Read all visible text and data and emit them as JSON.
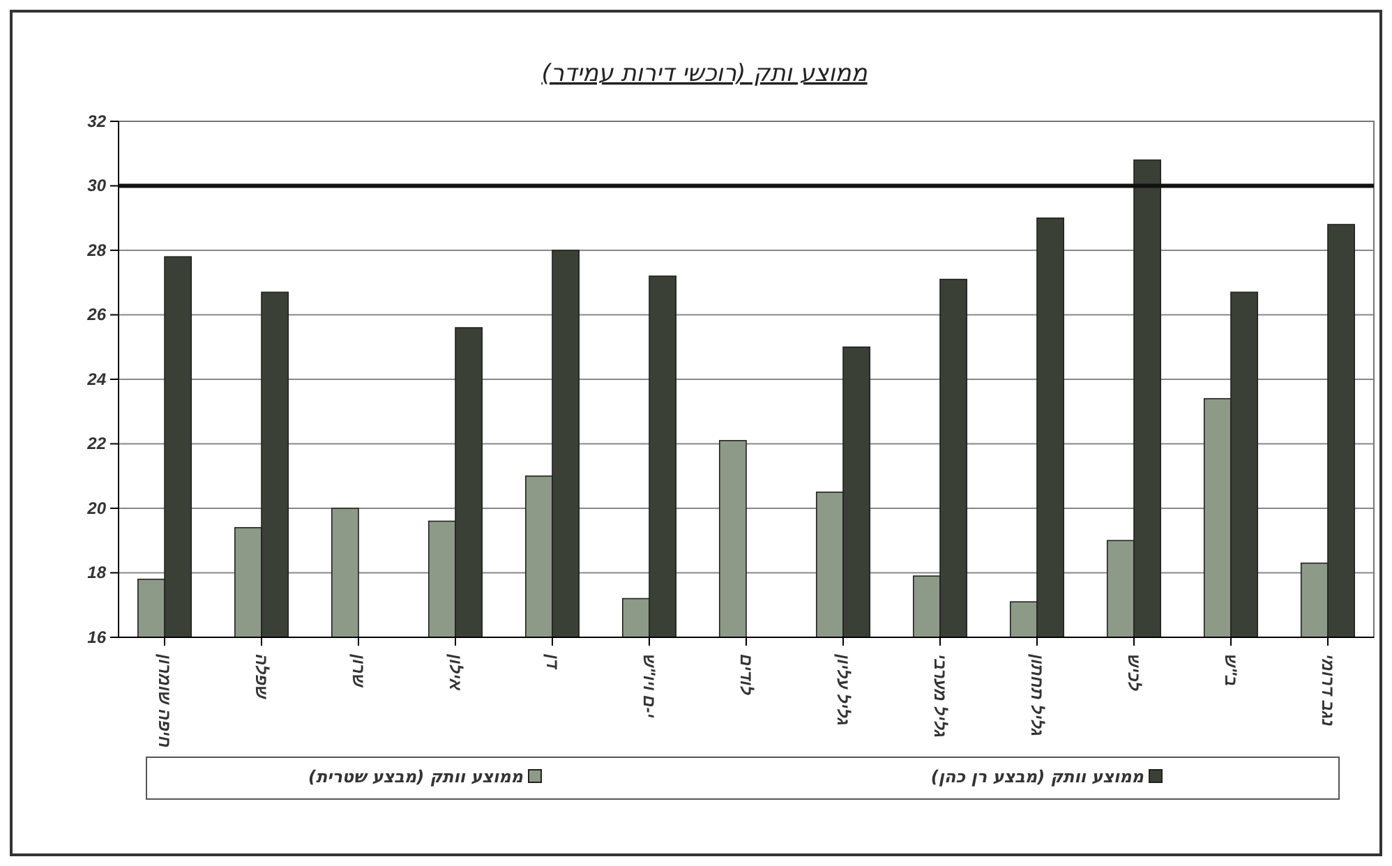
{
  "chart_data": {
    "type": "bar",
    "title": "ממוצע ותק  (רוכשי דירות עמידר)",
    "categories": [
      "חיפה שומרון",
      "שפלה",
      "שרון",
      "אילון",
      "דן",
      "י-ם ויו\"ש",
      "לודים",
      "גליל עליון",
      "גליל מערבי",
      "גליל תחתון",
      "לכיש",
      "ב\"ש",
      "נגב דרומי"
    ],
    "series": [
      {
        "name": "ממוצע וותק  (מבצע שטרית)",
        "color": "#8e9a88",
        "values": [
          17.8,
          19.4,
          20.0,
          19.6,
          21.0,
          17.2,
          22.1,
          20.5,
          17.9,
          17.1,
          19.0,
          23.4,
          18.3
        ]
      },
      {
        "name": "ממוצע וותק (מבצע רן כהן)",
        "color": "#3b4036",
        "values": [
          27.8,
          26.7,
          null,
          25.6,
          28.0,
          27.2,
          null,
          25.0,
          27.1,
          29.0,
          30.8,
          26.7,
          28.8
        ]
      }
    ],
    "ylim": [
      16,
      32
    ],
    "yticks": [
      16,
      18,
      20,
      22,
      24,
      26,
      28,
      30,
      32
    ],
    "grid": "y",
    "legend": "bottom",
    "ref_lines": [
      {
        "axis": "y",
        "value": 30,
        "color": "#111111"
      }
    ]
  }
}
